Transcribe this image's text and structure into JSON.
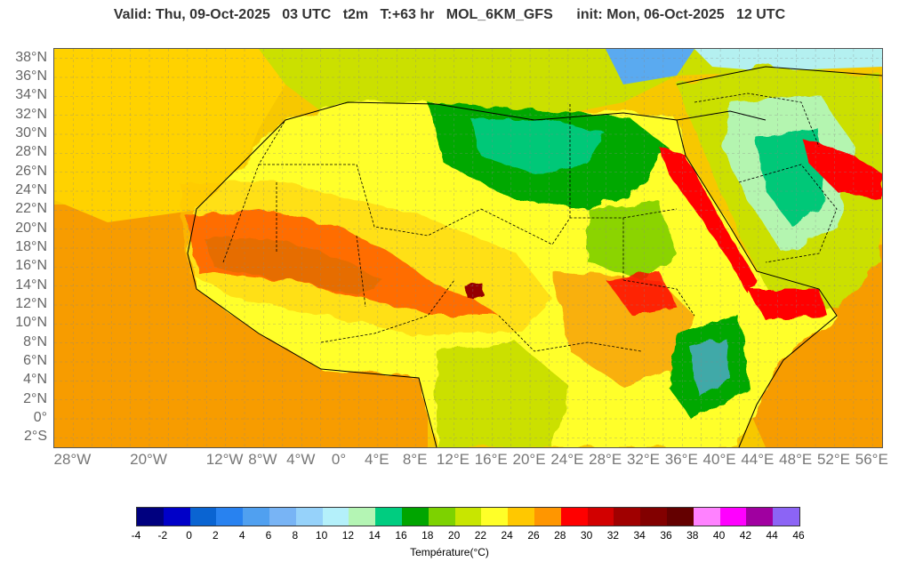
{
  "header": {
    "valid_text": "Valid: Thu, 09-Oct-2025   03 UTC   t2m   T:+63 hr   MOL_6KM_GFS",
    "init_text": "init: Mon, 06-Oct-2025   12 UTC"
  },
  "map": {
    "lat_labels": [
      "38°N",
      "36°N",
      "34°N",
      "32°N",
      "30°N",
      "28°N",
      "26°N",
      "24°N",
      "22°N",
      "20°N",
      "18°N",
      "16°N",
      "14°N",
      "12°N",
      "10°N",
      "8°N",
      "6°N",
      "4°N",
      "2°N",
      "0°",
      "2°S"
    ],
    "lat_values": [
      38,
      36,
      34,
      32,
      30,
      28,
      26,
      24,
      22,
      20,
      18,
      16,
      14,
      12,
      10,
      8,
      6,
      4,
      2,
      0,
      -2
    ],
    "lon_labels": [
      "28°W",
      "20°W",
      "12°W",
      "8°W",
      "4°W",
      "0°",
      "4°E",
      "8°E",
      "12°E",
      "16°E",
      "20°E",
      "24°E",
      "28°E",
      "32°E",
      "36°E",
      "40°E",
      "44°E",
      "48°E",
      "52°E",
      "56°E"
    ],
    "lon_values": [
      -28,
      -20,
      -12,
      -8,
      -4,
      0,
      4,
      8,
      12,
      16,
      20,
      24,
      28,
      32,
      36,
      40,
      44,
      48,
      52,
      56
    ],
    "lat_range": [
      -3,
      39
    ],
    "lon_range": [
      -30,
      57
    ],
    "colors": {
      "ocean_warm": "#f79c00",
      "ocean_mid": "#f7c800",
      "land_hot": "#ff0000",
      "land_very_hot": "#c80000",
      "land_extreme": "#950000",
      "land_26": "#ffc600",
      "land_24": "#ffff2a",
      "land_22": "#cbe000",
      "land_20": "#8bd400",
      "land_18": "#00a800",
      "land_16": "#00c878",
      "land_14": "#b4f5b0",
      "land_12": "#b4f0f0",
      "sea_cold": "#5aaaf0",
      "sea_colder": "#2878e6"
    }
  },
  "colorbar": {
    "ticks": [
      "-4",
      "-2",
      "0",
      "2",
      "4",
      "6",
      "8",
      "10",
      "12",
      "14",
      "16",
      "18",
      "20",
      "22",
      "24",
      "26",
      "28",
      "30",
      "32",
      "34",
      "36",
      "38",
      "40",
      "42",
      "44",
      "46"
    ],
    "colors": [
      "#00007f",
      "#0000c8",
      "#0a64d2",
      "#2882f0",
      "#50a0f0",
      "#78b4f5",
      "#96d2fa",
      "#b4f0fa",
      "#b4f5b4",
      "#00cd80",
      "#00a500",
      "#7dd200",
      "#c8e600",
      "#ffff28",
      "#ffc800",
      "#ff9600",
      "#ff0000",
      "#d20000",
      "#a00000",
      "#820000",
      "#640000",
      "#ff82ff",
      "#ff00ff",
      "#a000a0",
      "#8c64f5"
    ],
    "label": "Température(°C)"
  }
}
